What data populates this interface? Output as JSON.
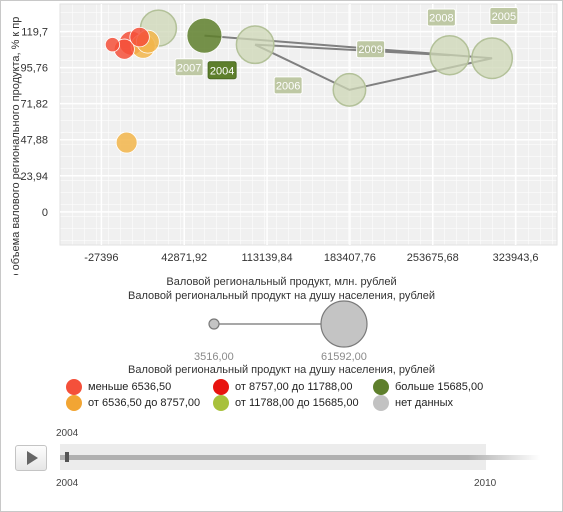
{
  "chart_data": {
    "type": "bubble",
    "title": "",
    "xlabel": "Валовой региональный продукт, млн. рублей",
    "ylabel": "го объема валового регионального продукта, % к пр",
    "size_label": "Валовой региональный продукт на душу населения, рублей",
    "x_ticks": [
      "-27396",
      "42871,92",
      "113139,84",
      "183407,76",
      "253675,68",
      "323943,6"
    ],
    "x_tick_values": [
      -27396,
      42871.92,
      113139.84,
      183407.76,
      253675.68,
      323943.6
    ],
    "y_ticks": [
      "0",
      "23,94",
      "47,88",
      "71,82",
      "95,76",
      "119,7"
    ],
    "y_tick_values": [
      0,
      23.94,
      47.88,
      71.82,
      95.76,
      119.7
    ],
    "xlim": [
      -62530,
      359078
    ],
    "ylim": [
      -22,
      138
    ],
    "grid": true,
    "bubbles": [
      {
        "x": 21000,
        "y": 122,
        "size": 22000,
        "color": "#cdd7b6"
      },
      {
        "x": 103000,
        "y": 111,
        "size": 24000,
        "color": "#cdd7b6"
      },
      {
        "x": 183000,
        "y": 81,
        "size": 18000,
        "color": "#cdd7b6"
      },
      {
        "x": 268000,
        "y": 104,
        "size": 26000,
        "color": "#cdd7b6"
      },
      {
        "x": 304000,
        "y": 102,
        "size": 28000,
        "color": "#cdd7b6"
      },
      {
        "x": -6000,
        "y": 46,
        "size": 7500,
        "color": "#f2b54a"
      },
      {
        "x": -18000,
        "y": 111,
        "size": 3516,
        "color": "#f4503a"
      },
      {
        "x": -8000,
        "y": 108,
        "size": 7000,
        "color": "#f4503a"
      },
      {
        "x": -2000,
        "y": 112,
        "size": 10000,
        "color": "#f4503a"
      },
      {
        "x": 5000,
        "y": 116,
        "size": 6500,
        "color": "#f4503a"
      },
      {
        "x": 8000,
        "y": 110,
        "size": 10000,
        "color": "#f2b54a"
      },
      {
        "x": 12000,
        "y": 113,
        "size": 9000,
        "color": "#f2b54a"
      },
      {
        "x": 60000,
        "y": 117,
        "size": 21000,
        "color": "#5e7f2c"
      }
    ],
    "trail": [
      {
        "year": "2004",
        "x": 60000,
        "y": 117
      },
      {
        "year": "2005",
        "x": 304000,
        "y": 102
      },
      {
        "year": "2006",
        "x": 183000,
        "y": 81
      },
      {
        "year": "2007",
        "x": 103000,
        "y": 111
      },
      {
        "year": "2008",
        "x": 268000,
        "y": 104
      }
    ],
    "year_labels": [
      {
        "year": "2004",
        "x": 75000,
        "y": 94,
        "active": true
      },
      {
        "year": "2005",
        "x": 314000,
        "y": 130,
        "active": false
      },
      {
        "year": "2006",
        "x": 131000,
        "y": 84,
        "active": false
      },
      {
        "year": "2007",
        "x": 47000,
        "y": 96,
        "active": false
      },
      {
        "year": "2008",
        "x": 261000,
        "y": 129,
        "active": false
      },
      {
        "year": "2009",
        "x": 201000,
        "y": 108,
        "active": false
      }
    ]
  },
  "size_legend": {
    "title": "Валовой региональный продукт на душу населения, рублей",
    "min_label": "3516,00",
    "max_label": "61592,00"
  },
  "color_legend": {
    "items": [
      {
        "label": "меньше 6536,50",
        "color": "#f4503a"
      },
      {
        "label": "от 8757,00 до 11788,00",
        "color": "#e8130f"
      },
      {
        "label": "больше 15685,00",
        "color": "#5e7f2c"
      },
      {
        "label": "от 6536,50 до 8757,00",
        "color": "#f2a533"
      },
      {
        "label": "от 11788,00 до 15685,00",
        "color": "#a8c13c"
      },
      {
        "label": "нет данных",
        "color": "#c2c2c2"
      }
    ]
  },
  "timeline": {
    "current": "2004",
    "start": "2004",
    "end": "2010",
    "progress": 0
  }
}
